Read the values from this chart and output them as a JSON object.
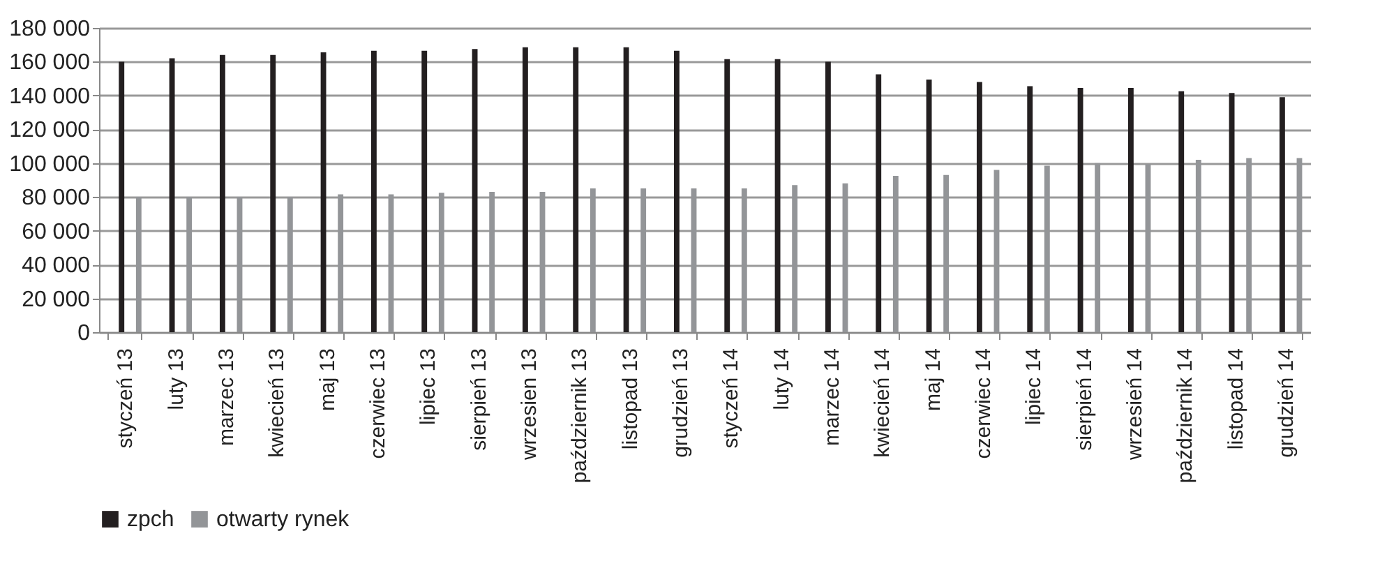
{
  "chart_data": {
    "type": "bar",
    "categories": [
      "styczeń 13",
      "luty 13",
      "marzec 13",
      "kwiecień 13",
      "maj 13",
      "czerwiec 13",
      "lipiec 13",
      "sierpień 13",
      "wrzesien 13",
      "październik 13",
      "listopad 13",
      "grudzień 13",
      "styczeń 14",
      "luty 14",
      "marzec 14",
      "kwiecień 14",
      "maj 14",
      "czerwiec 14",
      "lipiec 14",
      "sierpień 14",
      "wrzesień 14",
      "październik 14",
      "listopad 14",
      "grudzień 14"
    ],
    "series": [
      {
        "name": "zpch",
        "color": "#231f20",
        "values": [
          160000,
          162000,
          164000,
          164000,
          165500,
          166500,
          166500,
          167500,
          168500,
          168500,
          168500,
          166500,
          161500,
          161500,
          160000,
          152500,
          149500,
          148000,
          145500,
          144500,
          144500,
          142500,
          141500,
          139000
        ]
      },
      {
        "name": "otwarty rynek",
        "color": "#939598",
        "values": [
          80000,
          80000,
          80000,
          80000,
          81500,
          81500,
          82500,
          83000,
          83000,
          85000,
          85000,
          85000,
          85000,
          87000,
          88000,
          92500,
          93000,
          96000,
          98500,
          100000,
          99500,
          102000,
          103000,
          103000
        ]
      }
    ],
    "ylim": [
      0,
      180000
    ],
    "yticks": [
      {
        "value": 0,
        "label": "0"
      },
      {
        "value": 20000,
        "label": "20 000"
      },
      {
        "value": 40000,
        "label": "40 000"
      },
      {
        "value": 60000,
        "label": "60 000"
      },
      {
        "value": 80000,
        "label": "80 000"
      },
      {
        "value": 100000,
        "label": "100 000"
      },
      {
        "value": 120000,
        "label": "120 000"
      },
      {
        "value": 140000,
        "label": "140 000"
      },
      {
        "value": 160000,
        "label": "160 000"
      },
      {
        "value": 180000,
        "label": "180 000"
      }
    ],
    "grid": "y",
    "legend": "bottom"
  }
}
